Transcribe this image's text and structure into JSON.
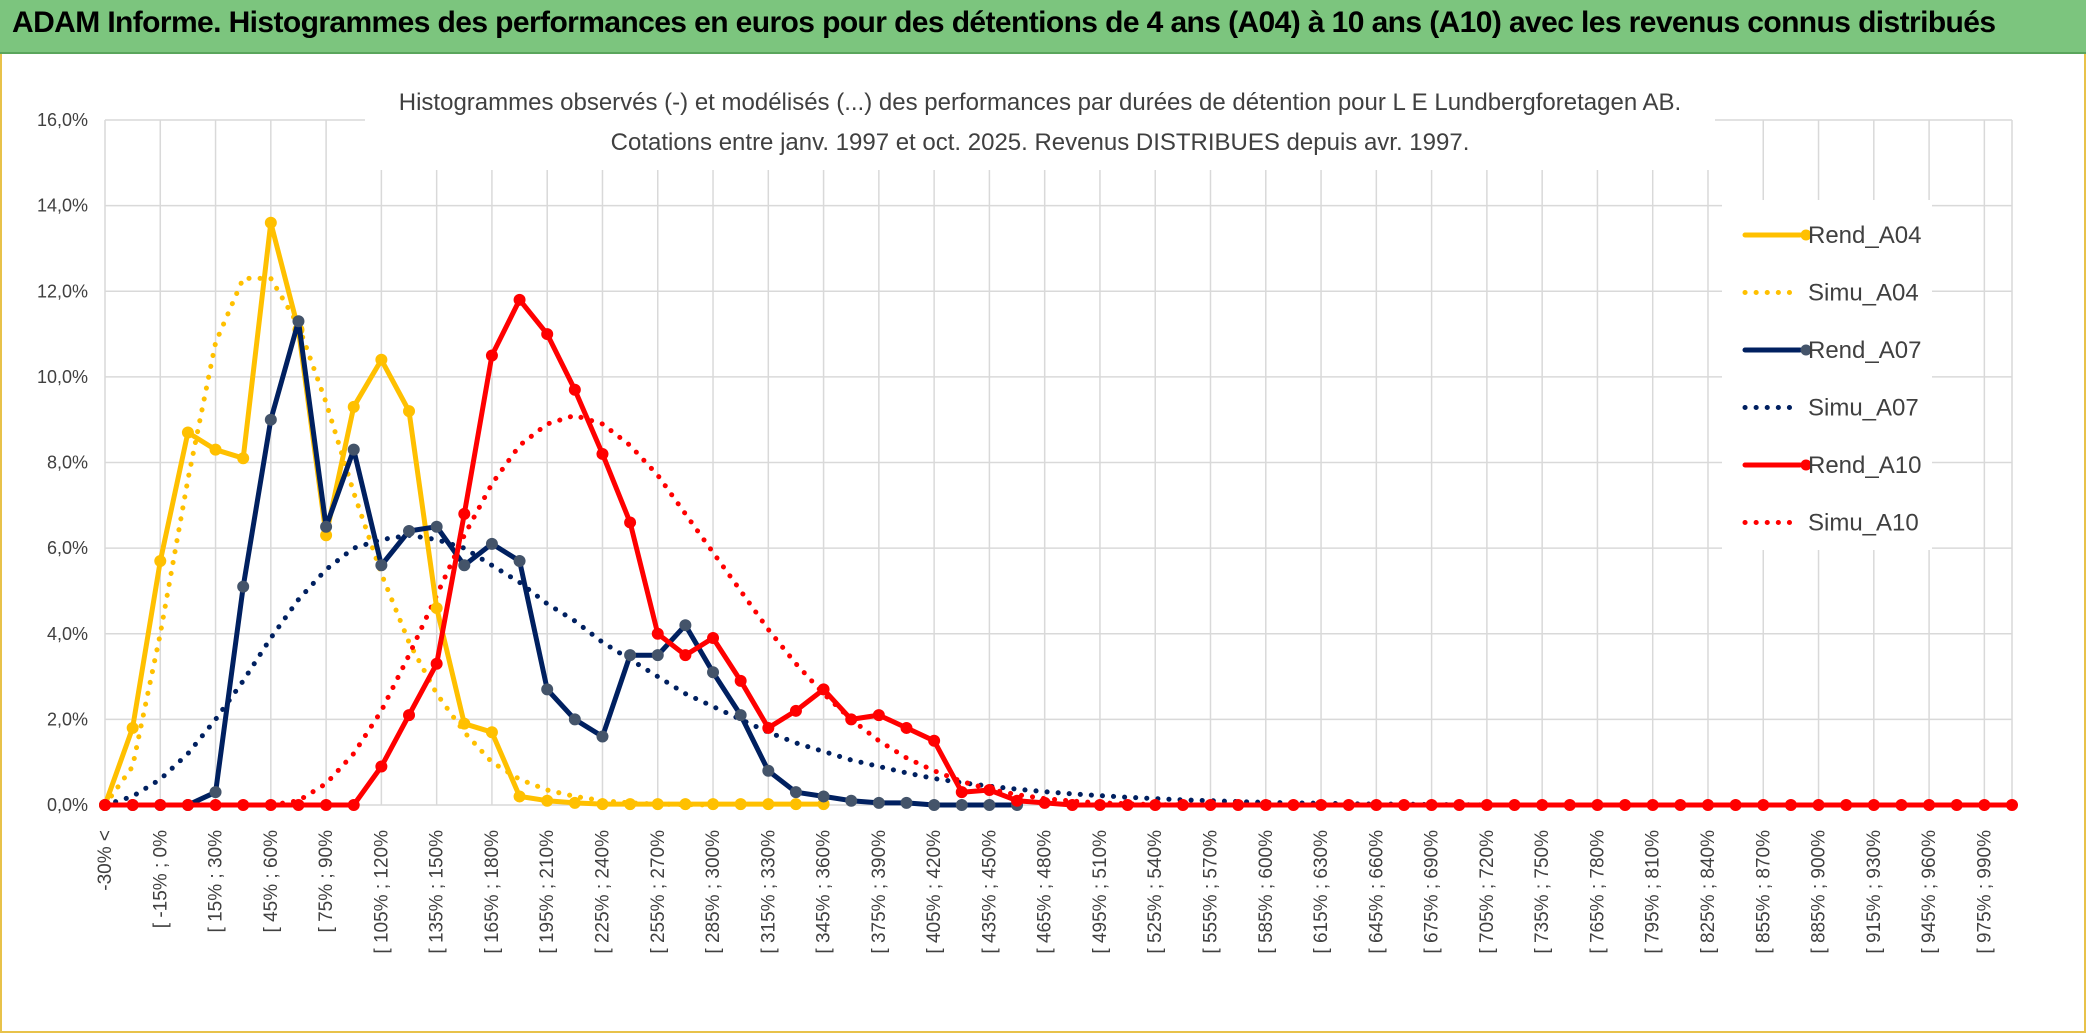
{
  "header": {
    "title": "ADAM Informe. Histogrammes des performances en euros pour des détentions de 4 ans (A04) à 10 ans (A10) avec les revenus connus distribués"
  },
  "chart_data": {
    "type": "line",
    "title_line1": "Histogrammes observés (-) et modélisés (...) des performances par durées de détention pour L E Lundbergforetagen AB.",
    "title_line2": "Cotations entre janv. 1997 et oct. 2025. Revenus DISTRIBUES depuis avr. 1997.",
    "xlabel": "",
    "ylabel": "",
    "ylim": [
      0,
      16
    ],
    "yticks": [
      "0,0%",
      "2,0%",
      "4,0%",
      "6,0%",
      "8,0%",
      "10,0%",
      "12,0%",
      "14,0%",
      "16,0%"
    ],
    "grid": true,
    "legend_position": "right",
    "x_labels": [
      "-30% <",
      "[ -15% ; 0% ",
      "[ 15% ; 30% ",
      "[ 45% ; 60% ",
      "[ 75% ; 90% ",
      "[ 105% ; 120% ",
      "[ 135% ; 150% ",
      "[ 165% ; 180% ",
      "[ 195% ; 210% ",
      "[ 225% ; 240% ",
      "[ 255% ; 270% ",
      "[ 285% ; 300% ",
      "[ 315% ; 330% ",
      "[ 345% ; 360% ",
      "[ 375% ; 390% ",
      "[ 405% ; 420% ",
      "[ 435% ; 450% ",
      "[ 465% ; 480% ",
      "[ 495% ; 510% ",
      "[ 525% ; 540% ",
      "[ 555% ; 570% ",
      "[ 585% ; 600% ",
      "[ 615% ; 630% ",
      "[ 645% ; 660% ",
      "[ 675% ; 690% ",
      "[ 705% ; 720% ",
      "[ 735% ; 750% ",
      "[ 765% ; 780% ",
      "[ 795% ; 810% ",
      "[ 825% ; 840% ",
      "[ 855% ; 870% ",
      "[ 885% ; 900% ",
      "[ 915% ; 930% ",
      "[ 945% ; 960% ",
      "[ 975% ; 990% "
    ],
    "num_bins": 70,
    "series": [
      {
        "name": "Rend_A04",
        "color": "#FFC000",
        "style": "solid",
        "markers": true,
        "values": [
          0.0,
          1.8,
          5.7,
          8.7,
          8.3,
          8.1,
          13.6,
          11.1,
          6.3,
          9.3,
          10.4,
          9.2,
          4.6,
          1.9,
          1.7,
          0.2,
          0.1,
          0.05,
          0.02,
          0.02,
          0.02,
          0.02,
          0.02,
          0.02,
          0.02,
          0.02,
          0.02
        ]
      },
      {
        "name": "Simu_A04",
        "color": "#FFC000",
        "style": "dotted",
        "markers": false,
        "values": [
          0.0,
          0.9,
          4.0,
          7.6,
          10.8,
          12.3,
          12.3,
          11.2,
          9.4,
          7.3,
          5.4,
          3.8,
          2.6,
          1.7,
          1.0,
          0.6,
          0.35,
          0.2,
          0.1,
          0.05,
          0.02,
          0.01,
          0.0
        ]
      },
      {
        "name": "Rend_A07",
        "color": "#002060",
        "style": "solid",
        "markers": true,
        "values": [
          0.0,
          0.0,
          0.0,
          0.0,
          0.3,
          5.1,
          9.0,
          11.3,
          6.5,
          8.3,
          5.6,
          6.4,
          6.5,
          5.6,
          6.1,
          5.7,
          2.7,
          2.0,
          1.6,
          3.5,
          3.5,
          4.2,
          3.1,
          2.1,
          0.8,
          0.3,
          0.2,
          0.1,
          0.05,
          0.05,
          0.0,
          0.0,
          0.0,
          0.0
        ]
      },
      {
        "name": "Simu_A07",
        "color": "#002060",
        "style": "dotted",
        "markers": false,
        "values": [
          0.0,
          0.2,
          0.6,
          1.2,
          2.0,
          2.9,
          3.9,
          4.8,
          5.5,
          6.0,
          6.2,
          6.3,
          6.2,
          6.0,
          5.6,
          5.2,
          4.7,
          4.3,
          3.8,
          3.4,
          3.0,
          2.6,
          2.3,
          2.0,
          1.7,
          1.45,
          1.25,
          1.05,
          0.9,
          0.75,
          0.62,
          0.52,
          0.44,
          0.37,
          0.31,
          0.26,
          0.22,
          0.18,
          0.15,
          0.12,
          0.1,
          0.08,
          0.06,
          0.05,
          0.04,
          0.03,
          0.02,
          0.02,
          0.01,
          0.01,
          0.0
        ]
      },
      {
        "name": "Rend_A10",
        "color": "#FF0000",
        "style": "solid",
        "markers": true,
        "values": [
          0.0,
          0.0,
          0.0,
          0.0,
          0.0,
          0.0,
          0.0,
          0.0,
          0.0,
          0.0,
          0.9,
          2.1,
          3.3,
          6.8,
          10.5,
          11.8,
          11.0,
          9.7,
          8.2,
          6.6,
          4.0,
          3.5,
          3.9,
          2.9,
          1.8,
          2.2,
          2.7,
          2.0,
          2.1,
          1.8,
          1.5,
          0.3,
          0.35,
          0.1,
          0.05,
          0.0,
          0.0,
          0.0,
          0.0,
          0.0,
          0.0,
          0.0,
          0.0,
          0.0,
          0.0,
          0.0,
          0.0,
          0.0,
          0.0,
          0.0,
          0.0,
          0.0,
          0.0,
          0.0,
          0.0,
          0.0,
          0.0,
          0.0,
          0.0,
          0.0,
          0.0,
          0.0,
          0.0,
          0.0,
          0.0,
          0.0,
          0.0,
          0.0,
          0.0,
          0.0
        ]
      },
      {
        "name": "Simu_A10",
        "color": "#FF0000",
        "style": "dotted",
        "markers": false,
        "values": [
          0.0,
          0.0,
          0.0,
          0.0,
          0.0,
          0.0,
          0.0,
          0.1,
          0.5,
          1.2,
          2.2,
          3.5,
          4.9,
          6.3,
          7.5,
          8.4,
          8.9,
          9.1,
          8.9,
          8.4,
          7.7,
          6.8,
          5.9,
          5.0,
          4.1,
          3.3,
          2.6,
          2.0,
          1.5,
          1.1,
          0.8,
          0.55,
          0.37,
          0.24,
          0.15,
          0.09,
          0.05,
          0.03,
          0.01,
          0.0,
          0.0,
          0.0,
          0.0,
          0.0,
          0.0,
          0.0,
          0.0,
          0.0,
          0.0,
          0.0,
          0.0,
          0.0,
          0.0,
          0.0,
          0.0,
          0.0,
          0.0,
          0.0,
          0.0,
          0.0,
          0.0,
          0.0,
          0.0,
          0.0,
          0.0,
          0.0,
          0.0,
          0.0,
          0.0,
          0.0
        ]
      }
    ]
  }
}
